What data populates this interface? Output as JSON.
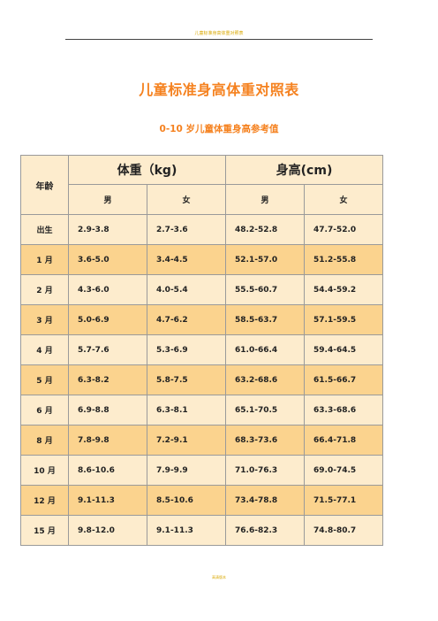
{
  "header": {
    "text": "儿童标准身高体重对照表"
  },
  "title": "儿童标准身高体重对照表",
  "subtitle": "0-10 岁儿童体重身高参考值",
  "table": {
    "age_header": "年龄",
    "weight_header": "体重（kg)",
    "height_header": "身高(cm)",
    "sex_labels": [
      "男",
      "女",
      "男",
      "女"
    ],
    "rows": [
      {
        "age": "出生",
        "w_m": "2.9-3.8",
        "w_f": "2.7-3.6",
        "h_m": "48.2-52.8",
        "h_f": "47.7-52.0"
      },
      {
        "age": "1 月",
        "w_m": "3.6-5.0",
        "w_f": "3.4-4.5",
        "h_m": "52.1-57.0",
        "h_f": "51.2-55.8"
      },
      {
        "age": "2 月",
        "w_m": "4.3-6.0",
        "w_f": "4.0-5.4",
        "h_m": "55.5-60.7",
        "h_f": "54.4-59.2"
      },
      {
        "age": "3 月",
        "w_m": "5.0-6.9",
        "w_f": "4.7-6.2",
        "h_m": "58.5-63.7",
        "h_f": "57.1-59.5"
      },
      {
        "age": "4 月",
        "w_m": "5.7-7.6",
        "w_f": "5.3-6.9",
        "h_m": "61.0-66.4",
        "h_f": "59.4-64.5"
      },
      {
        "age": "5 月",
        "w_m": "6.3-8.2",
        "w_f": "5.8-7.5",
        "h_m": "63.2-68.6",
        "h_f": "61.5-66.7"
      },
      {
        "age": "6 月",
        "w_m": "6.9-8.8",
        "w_f": "6.3-8.1",
        "h_m": "65.1-70.5",
        "h_f": "63.3-68.6"
      },
      {
        "age": "8 月",
        "w_m": "7.8-9.8",
        "w_f": "7.2-9.1",
        "h_m": "68.3-73.6",
        "h_f": "66.4-71.8"
      },
      {
        "age": "10 月",
        "w_m": "8.6-10.6",
        "w_f": "7.9-9.9",
        "h_m": "71.0-76.3",
        "h_f": "69.0-74.5"
      },
      {
        "age": "12 月",
        "w_m": "9.1-11.3",
        "w_f": "8.5-10.6",
        "h_m": "73.4-78.8",
        "h_f": "71.5-77.1"
      },
      {
        "age": "15 月",
        "w_m": "9.8-12.0",
        "w_f": "9.1-11.3",
        "h_m": "76.6-82.3",
        "h_f": "74.8-80.7"
      }
    ]
  },
  "footer": {
    "text": "高清版本"
  },
  "colors": {
    "accent": "#f58220",
    "header_fill": "#fdeccd",
    "row_light": "#fdeccd",
    "row_dark": "#fbd38e"
  }
}
